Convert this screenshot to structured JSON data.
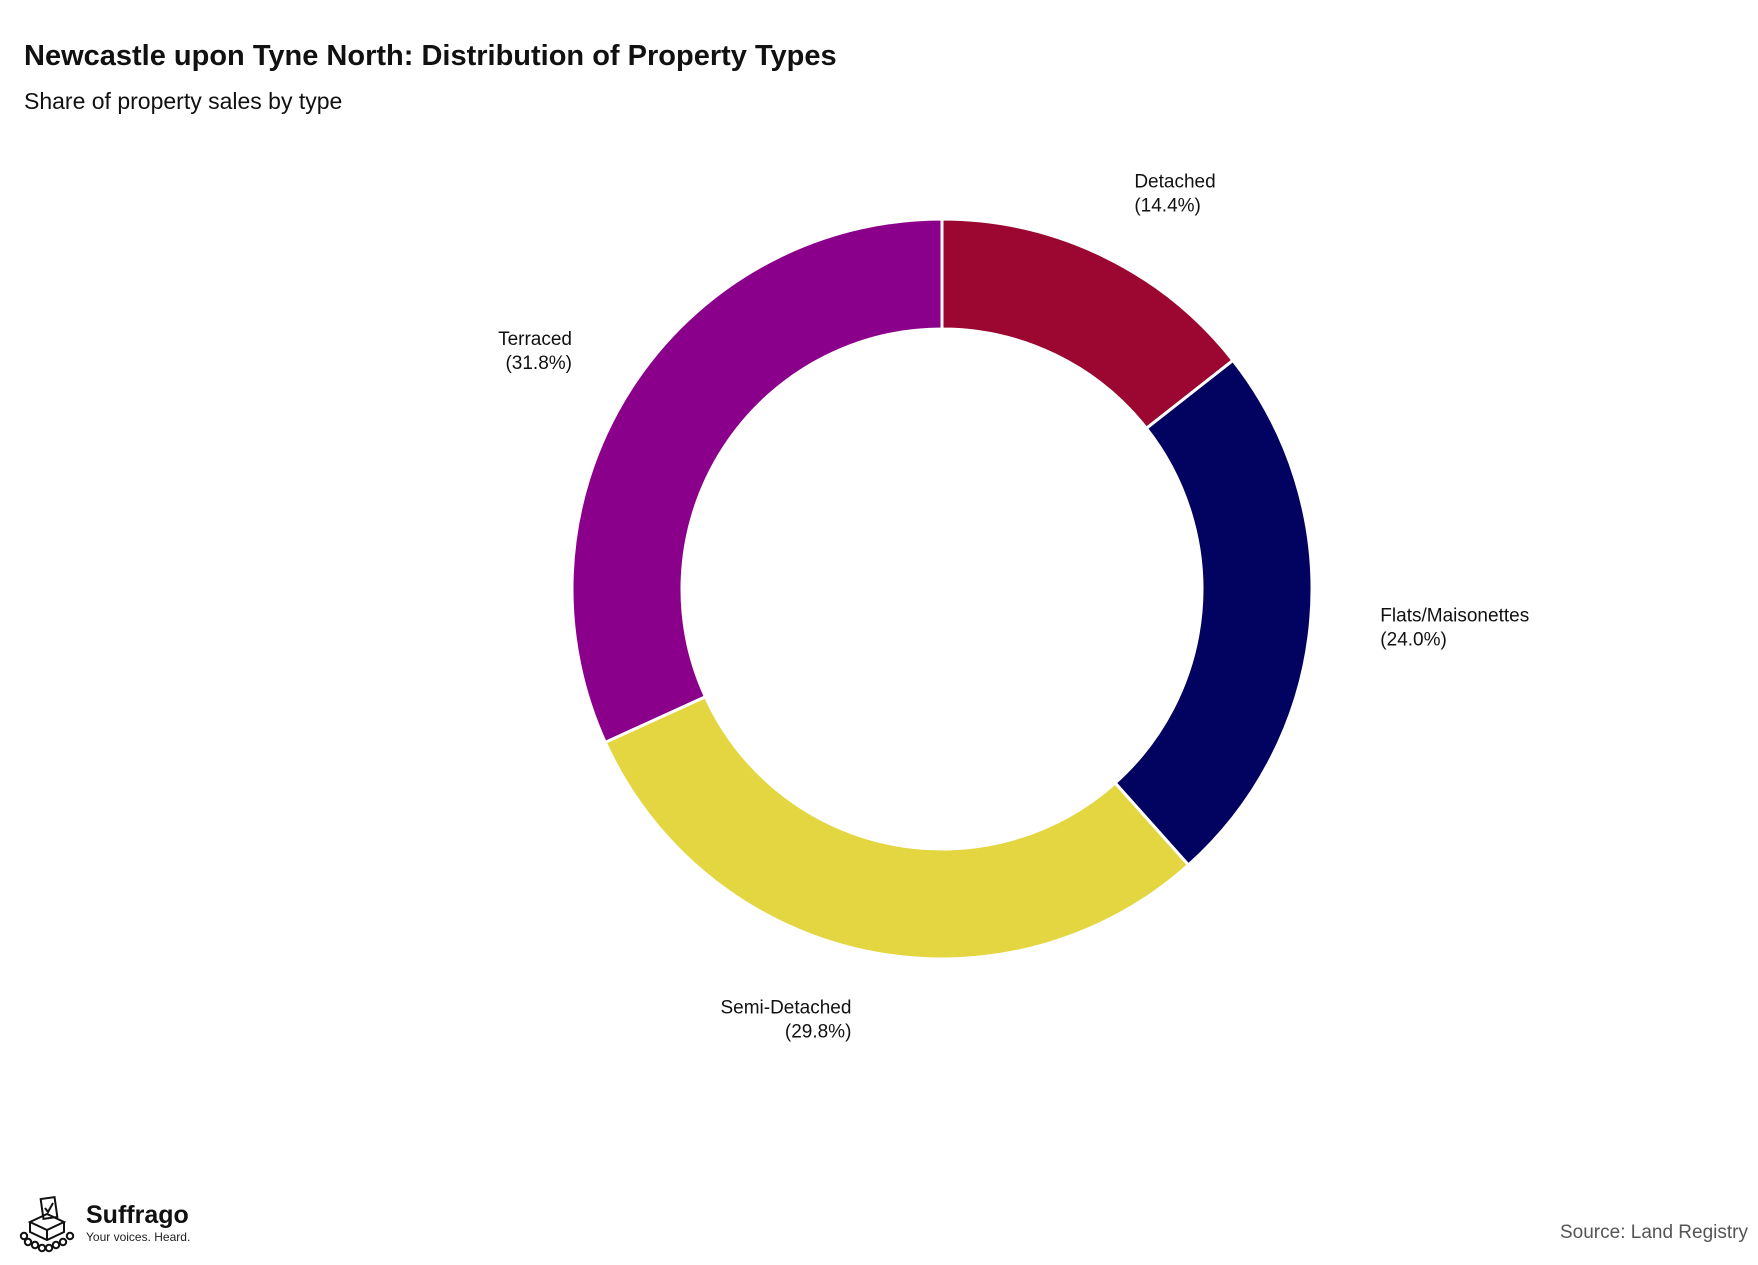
{
  "header": {
    "title": "Newcastle upon Tyne North: Distribution of Property Types",
    "subtitle": "Share of property sales by type"
  },
  "chart_data": {
    "type": "pie",
    "style": "donut",
    "title": "Newcastle upon Tyne North: Distribution of Property Types",
    "subtitle": "Share of property sales by type",
    "unit": "%",
    "slices": [
      {
        "name": "Detached",
        "value": 14.4,
        "label": "(14.4%)",
        "color": "#9b0730"
      },
      {
        "name": "Flats/Maisonettes",
        "value": 24.0,
        "label": "(24.0%)",
        "color": "#020260"
      },
      {
        "name": "Semi-Detached",
        "value": 29.8,
        "label": "(29.8%)",
        "color": "#e3d641"
      },
      {
        "name": "Terraced",
        "value": 31.8,
        "label": "(31.8%)",
        "color": "#8b008b"
      }
    ],
    "legend": "none"
  },
  "footer": {
    "brand_name": "Suffrago",
    "brand_tagline": "Your voices. Heard.",
    "source": "Source: Land Registry"
  }
}
